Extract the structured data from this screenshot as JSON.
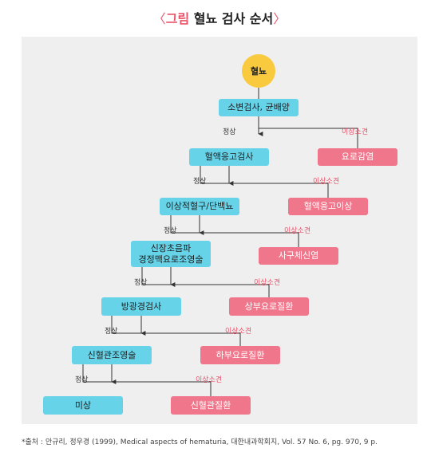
{
  "title": {
    "bracket_left": "〈",
    "highlight": "그림",
    "text": "혈뇨 검사 순서",
    "bracket_right": "〉"
  },
  "labels": {
    "normal": "정상",
    "abnormal": "이상소견"
  },
  "start": "혈뇨",
  "steps": [
    {
      "test": "소변검사, 균배양",
      "abnormal": "요로감염"
    },
    {
      "test": "혈액응고검사",
      "abnormal": "혈액응고이상"
    },
    {
      "test": "이상적혈구/단백뇨",
      "abnormal": "사구체신염"
    },
    {
      "test_line1": "신장초음파",
      "test_line2": "경정맥요로조영술",
      "abnormal": "상부요로질환"
    },
    {
      "test": "방광경검사",
      "abnormal": "하부요로질환"
    },
    {
      "test": "신혈관조영술",
      "abnormal": "신혈관질환"
    },
    {
      "test": "미상"
    }
  ],
  "footnote": "*출처 : 안규리, 정우경 (1999), Medical aspects of hematuria, 대한내과학회지, Vol. 57 No. 6, pg. 970, 9 p."
}
